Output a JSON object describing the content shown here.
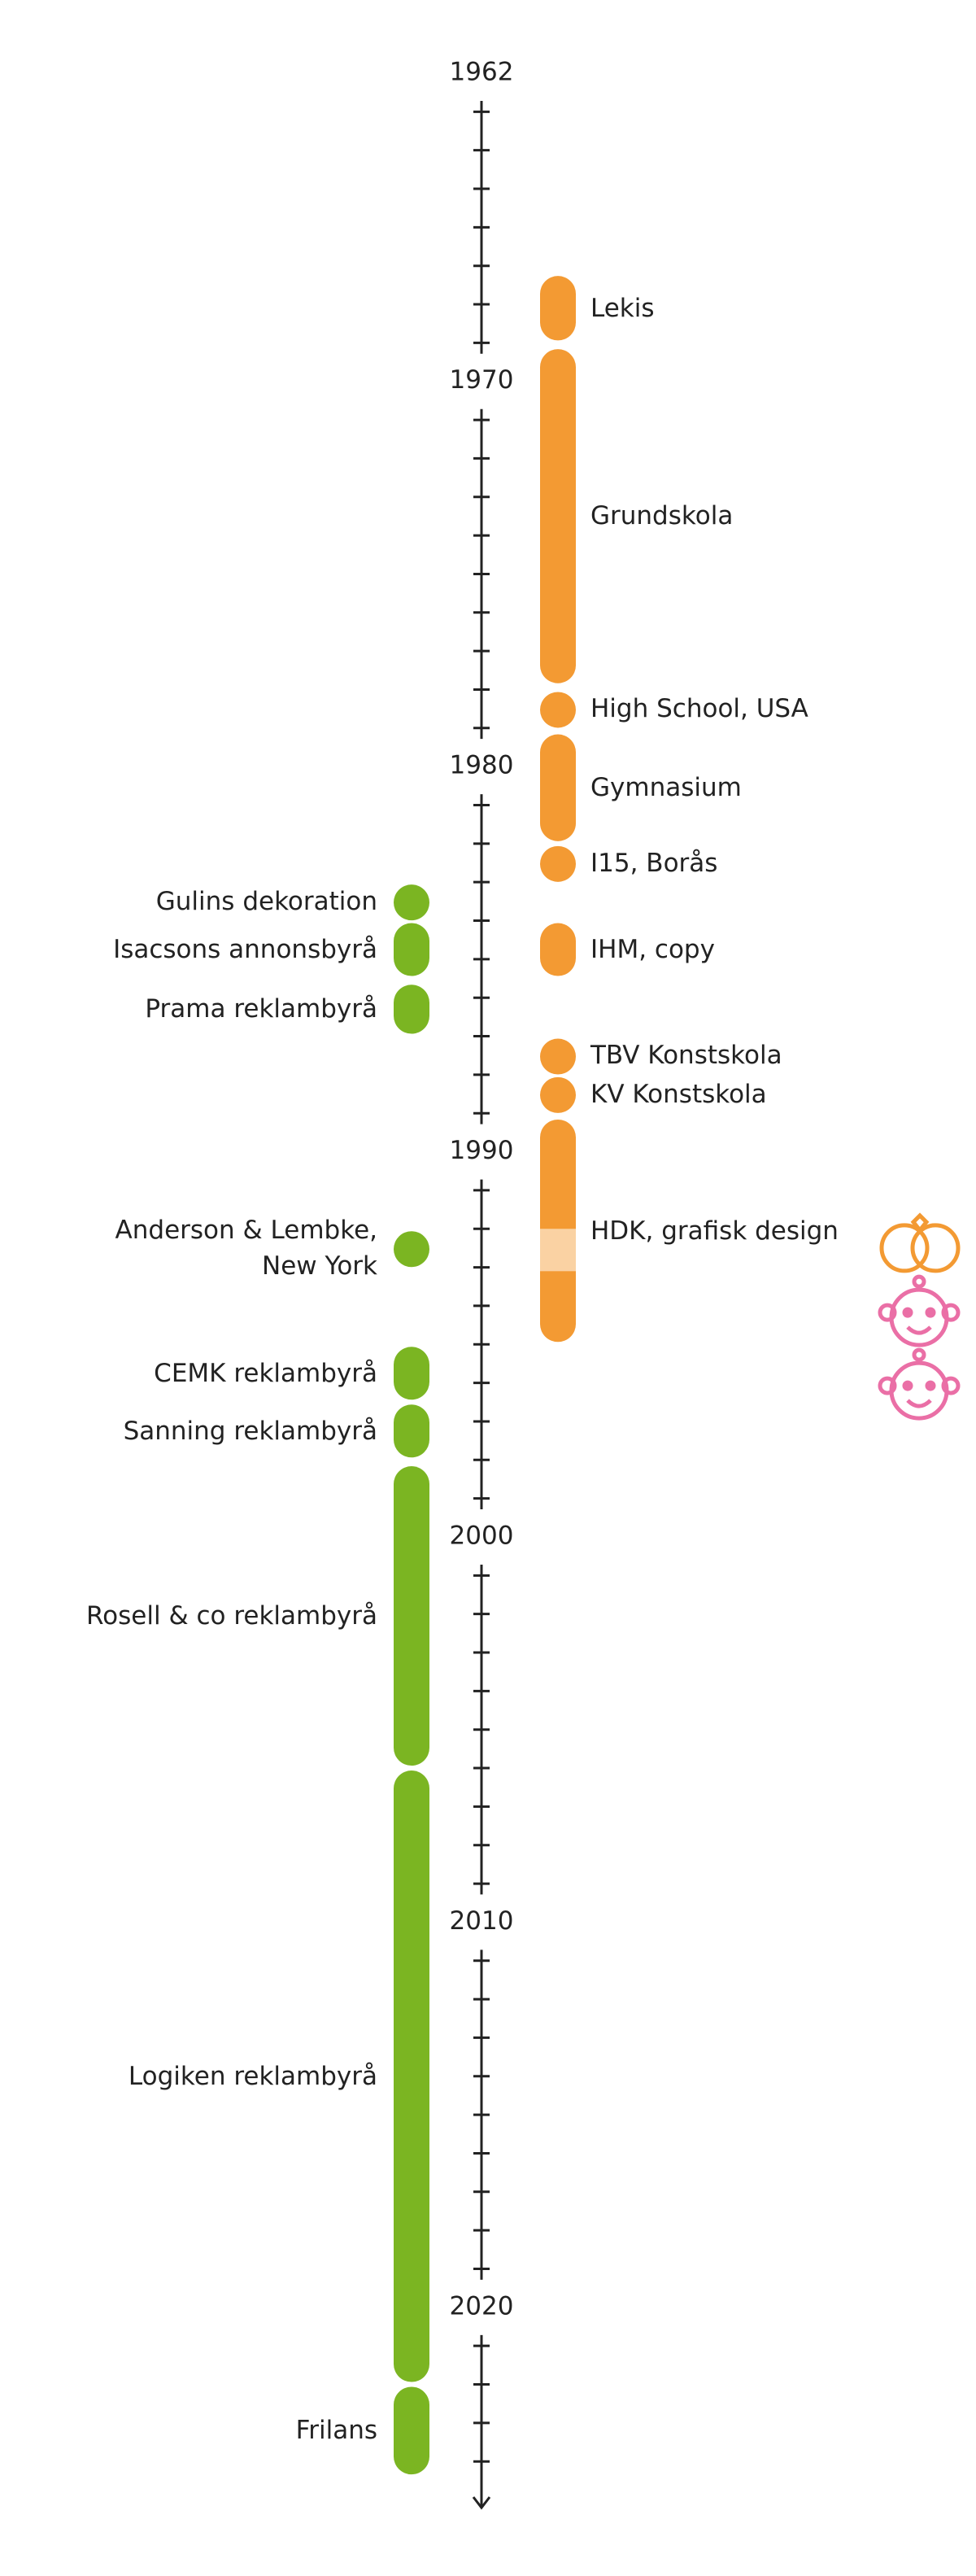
{
  "chart_data": {
    "type": "timeline",
    "ylim": [
      1962,
      2025.2
    ],
    "yticks": [
      1962,
      1970,
      1980,
      1990,
      2000,
      2010,
      2020
    ],
    "minor_yticks": [
      1963,
      1964,
      1965,
      1966,
      1967,
      1968,
      1969,
      1971,
      1972,
      1973,
      1974,
      1975,
      1976,
      1977,
      1978,
      1979,
      1981,
      1982,
      1983,
      1984,
      1985,
      1986,
      1987,
      1988,
      1989,
      1991,
      1992,
      1993,
      1994,
      1995,
      1996,
      1997,
      1998,
      1999,
      2001,
      2002,
      2003,
      2004,
      2005,
      2006,
      2007,
      2008,
      2009,
      2011,
      2012,
      2013,
      2014,
      2015,
      2016,
      2017,
      2018,
      2019,
      2021,
      2022,
      2023,
      2024
    ],
    "series": [
      {
        "color": "#f39a33",
        "pause_color": "#fad2a3",
        "events": [
          {
            "name": "Lekis",
            "start": 1967.2,
            "end": 1969.0
          },
          {
            "name": "Grundskola",
            "start": 1969.1,
            "end": 1977.9
          },
          {
            "name": "High School, USA",
            "start": 1978.0,
            "end": 1979.0
          },
          {
            "name": "Gymnasium",
            "start": 1979.1,
            "end": 1982.0
          },
          {
            "name": "I15, Borås",
            "start": 1982.0,
            "end": 1983.0
          },
          {
            "name": "IHM, copy",
            "start": 1984.0,
            "end": 1985.5
          },
          {
            "name": "TBV Konstskola",
            "start": 1987.0,
            "end": 1988.0
          },
          {
            "name": "KV Konstskola",
            "start": 1988.0,
            "end": 1989.0
          },
          {
            "name": "HDK, grafisk design",
            "start": 1989.1,
            "end": 1995.0,
            "pause": [
              1992.0,
              1993.1
            ]
          }
        ]
      },
      {
        "color": "#7bb522",
        "events": [
          {
            "name": "Gulins dekoration",
            "start": 1983.0,
            "end": 1984.0
          },
          {
            "name": "Isacsons annonsbyrå",
            "start": 1984.0,
            "end": 1985.5
          },
          {
            "name": "Prama reklambyrå",
            "start": 1985.6,
            "end": 1987.0
          },
          {
            "name": "Anderson & Lembke, New York",
            "start": 1992.0,
            "end": 1993.0
          },
          {
            "name": "CEMK reklambyrå",
            "start": 1995.0,
            "end": 1996.5
          },
          {
            "name": "Sanning reklambyrå",
            "start": 1996.5,
            "end": 1998.0
          },
          {
            "name": "Rosell & co reklambyrå",
            "start": 1998.1,
            "end": 2006.0
          },
          {
            "name": "Logiken reklambyrå",
            "start": 2006.0,
            "end": 2022.0
          },
          {
            "name": "Frilans",
            "start": 2022.0,
            "end": 2024.4
          }
        ]
      }
    ],
    "icon_years": [
      1992.5,
      1994.3,
      1996.2
    ]
  }
}
